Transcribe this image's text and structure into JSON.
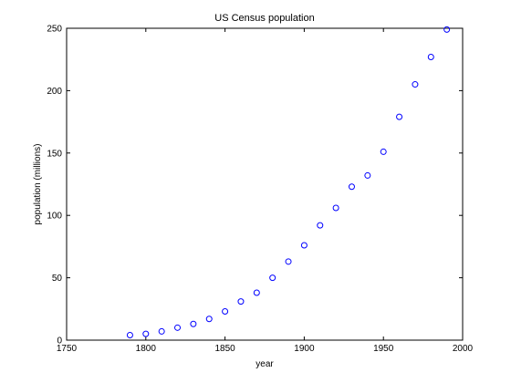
{
  "chart_data": {
    "type": "scatter",
    "title": "US Census population",
    "xlabel": "year",
    "ylabel": "population (millions)",
    "xlim": [
      1750,
      2000
    ],
    "ylim": [
      0,
      250
    ],
    "xticks": [
      1750,
      1800,
      1850,
      1900,
      1950,
      2000
    ],
    "yticks": [
      0,
      50,
      100,
      150,
      200,
      250
    ],
    "grid": false,
    "marker": "circle-open",
    "color": "#0000ff",
    "series": [
      {
        "x": [
          1790,
          1800,
          1810,
          1820,
          1830,
          1840,
          1850,
          1860,
          1870,
          1880,
          1890,
          1900,
          1910,
          1920,
          1930,
          1940,
          1950,
          1960,
          1970,
          1980,
          1990
        ],
        "y": [
          4,
          5,
          7,
          10,
          13,
          17,
          23,
          31,
          38,
          50,
          63,
          76,
          92,
          106,
          123,
          132,
          151,
          179,
          205,
          227,
          249
        ]
      }
    ]
  }
}
